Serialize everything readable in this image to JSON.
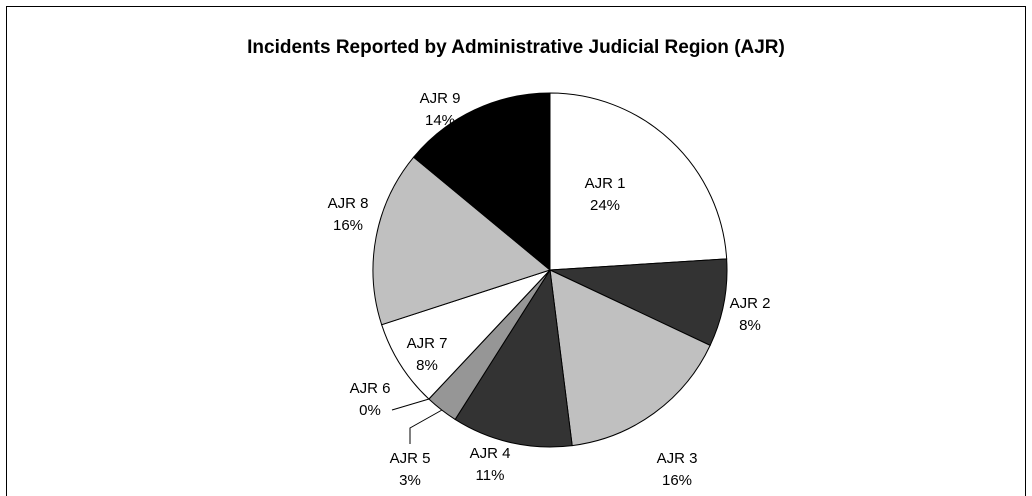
{
  "chart_data": {
    "type": "pie",
    "title": "Incidents Reported by Administrative Judicial Region (AJR)",
    "categories": [
      "AJR 1",
      "AJR 2",
      "AJR 3",
      "AJR 4",
      "AJR 5",
      "AJR 6",
      "AJR 7",
      "AJR 8",
      "AJR 9"
    ],
    "values": [
      24,
      8,
      16,
      11,
      3,
      0,
      8,
      16,
      14
    ],
    "value_labels": [
      "24%",
      "8%",
      "16%",
      "11%",
      "3%",
      "0%",
      "8%",
      "16%",
      "14%"
    ],
    "colors": [
      "#ffffff",
      "#333333",
      "#c0c0c0",
      "#333333",
      "#969696",
      "#ffffff",
      "#ffffff",
      "#c0c0c0",
      "#000000"
    ]
  }
}
